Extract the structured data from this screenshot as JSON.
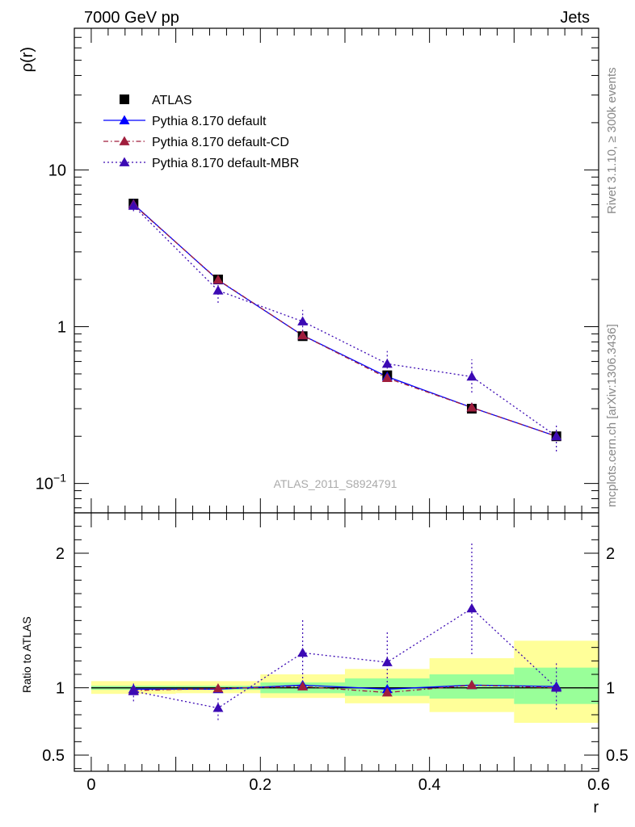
{
  "header": {
    "energy_label": "7000 GeV pp",
    "process_label": "Jets"
  },
  "side_labels": {
    "rivet": "Rivet 3.1.10, ≥ 300k events",
    "source": "mcplots.cern.ch [arXiv:1306.3436]"
  },
  "chart_data": [
    {
      "type": "line",
      "panel": "main",
      "ylabel": "ρ(r)",
      "xlabel": "",
      "analysis_label": "ATLAS_2011_S8924791",
      "yscale": "log",
      "xlim": [
        -0.02,
        0.6
      ],
      "ylim": [
        0.065,
        80
      ],
      "yticks": [
        {
          "value": 0.1,
          "base": "10",
          "exp": "−1"
        },
        {
          "value": 1,
          "label": "1"
        },
        {
          "value": 10,
          "label": "10"
        }
      ],
      "x": [
        0.05,
        0.15,
        0.25,
        0.35,
        0.45,
        0.55
      ],
      "xbins": [
        [
          0.0,
          0.1
        ],
        [
          0.1,
          0.2
        ],
        [
          0.2,
          0.3
        ],
        [
          0.3,
          0.4
        ],
        [
          0.4,
          0.5
        ],
        [
          0.5,
          0.6
        ]
      ],
      "legend_position": "top-left",
      "series": [
        {
          "name": "ATLAS",
          "marker": "square",
          "color": "#000000",
          "values": [
            6.1,
            2.0,
            0.87,
            0.49,
            0.3,
            0.2
          ],
          "errors": [
            0.12,
            0.05,
            0.03,
            0.02,
            0.015,
            0.012
          ]
        },
        {
          "name": "Pythia 8.170 default",
          "marker": "triangle",
          "color": "#0000ff",
          "line": "solid",
          "values": [
            6.05,
            1.98,
            0.88,
            0.48,
            0.305,
            0.2
          ],
          "errors": [
            0.0,
            0.0,
            0.0,
            0.0,
            0.0,
            0.0
          ]
        },
        {
          "name": "Pythia 8.170 default-CD",
          "marker": "triangle",
          "color": "#a01e3c",
          "line": "dashdot",
          "values": [
            6.0,
            1.99,
            0.88,
            0.47,
            0.305,
            0.2
          ],
          "errors": [
            0.0,
            0.0,
            0.0,
            0.0,
            0.0,
            0.0
          ]
        },
        {
          "name": "Pythia 8.170 default-MBR",
          "marker": "triangle",
          "color": "#3c0ab4",
          "line": "dotted",
          "values": [
            5.9,
            1.7,
            1.08,
            0.58,
            0.48,
            0.2
          ],
          "errors_low": [
            0.45,
            0.28,
            0.2,
            0.1,
            0.1,
            0.04
          ],
          "errors_high": [
            0.45,
            0.28,
            0.2,
            0.12,
            0.14,
            0.04
          ]
        }
      ]
    },
    {
      "type": "line",
      "panel": "ratio",
      "ylabel": "Ratio to ATLAS",
      "xlabel": "r",
      "xlim": [
        -0.02,
        0.6
      ],
      "ylim": [
        0.38,
        2.3
      ],
      "yticks": [
        0.5,
        1,
        2
      ],
      "xticks": [
        0,
        0.2,
        0.4,
        0.6
      ],
      "x": [
        0.05,
        0.15,
        0.25,
        0.35,
        0.45,
        0.55
      ],
      "bands": {
        "stat_color": "#99ff99",
        "total_color": "#ffff99",
        "stat": [
          [
            0.985,
            1.015
          ],
          [
            0.985,
            1.015
          ],
          [
            0.96,
            1.04
          ],
          [
            0.94,
            1.07
          ],
          [
            0.92,
            1.1
          ],
          [
            0.88,
            1.15
          ]
        ],
        "total": [
          [
            0.955,
            1.05
          ],
          [
            0.96,
            1.05
          ],
          [
            0.925,
            1.1
          ],
          [
            0.885,
            1.14
          ],
          [
            0.82,
            1.22
          ],
          [
            0.74,
            1.35
          ]
        ]
      },
      "series": [
        {
          "name": "Pythia 8.170 default",
          "color": "#0000ff",
          "line": "solid",
          "values": [
            0.99,
            0.99,
            1.02,
            0.99,
            1.02,
            1.01
          ]
        },
        {
          "name": "Pythia 8.170 default-CD",
          "color": "#a01e3c",
          "line": "dashdot",
          "values": [
            0.98,
            0.995,
            1.01,
            0.965,
            1.02,
            1.0
          ]
        },
        {
          "name": "Pythia 8.170 default-MBR",
          "color": "#3c0ab4",
          "line": "dotted",
          "values": [
            0.975,
            0.85,
            1.26,
            1.19,
            1.59,
            1.0
          ],
          "errors_low": [
            0.075,
            0.09,
            0.19,
            0.18,
            0.34,
            0.16
          ],
          "errors_high": [
            0.075,
            0.09,
            0.25,
            0.23,
            0.5,
            0.2
          ]
        }
      ]
    }
  ]
}
